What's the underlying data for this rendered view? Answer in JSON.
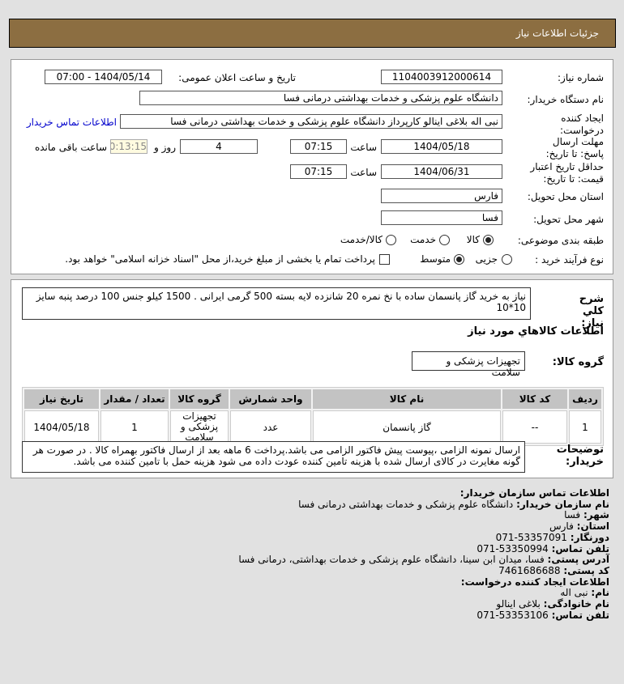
{
  "header": {
    "title": "جزئیات اطلاعات نیاز"
  },
  "form": {
    "need_number_label": "شماره نیاز:",
    "need_number": "1104003912000614",
    "announce_label": "تاریخ و ساعت اعلان عمومی:",
    "announce_value": "1404/05/14 - 07:00",
    "buyer_label": "نام دستگاه خریدار:",
    "buyer_value": "دانشگاه علوم پزشکی و خدمات بهداشتی درمانی فسا",
    "creator_label": "ایجاد کننده درخواست:",
    "creator_value": "نبی اله بلاغی اینالو کارپرداز دانشگاه علوم پزشکی و خدمات بهداشتی درمانی فسا",
    "contact_link": "اطلاعات تماس خریدار",
    "deadline_label": "مهلت ارسال پاسخ: تا تاریخ:",
    "deadline_date": "1404/05/18",
    "time_label": "ساعت",
    "deadline_time": "07:15",
    "days": "4",
    "days_label": "روز و",
    "remaining": "00:13:15",
    "remaining_label": "ساعت باقی مانده",
    "validity_label": "حداقل تاریخ اعتبار قیمت: تا تاریخ:",
    "validity_date": "1404/06/31",
    "validity_time": "07:15",
    "province_label": "استان محل تحویل:",
    "province": "فارس",
    "city_label": "شهر محل تحویل:",
    "city": "فسا",
    "category_label": "طبقه بندی موضوعی:",
    "category_options": [
      "کالا",
      "خدمت",
      "کالا/خدمت"
    ],
    "category_selected": "کالا",
    "process_label": "نوع فرآیند خرید :",
    "process_options": [
      "جزیی",
      "متوسط"
    ],
    "process_selected": "متوسط",
    "payment_note": "پرداخت تمام یا بخشی از مبلغ خرید،از محل \"اسناد خزانه اسلامی\" خواهد بود."
  },
  "details": {
    "desc_label": "شرح کلي نياز:",
    "desc": "نیاز به خرید گاز پانسمان ساده با نخ نمره 20 شانزده لایه بسته 500 گرمی ایرانی . 1500 کیلو جنس 100 درصد پنبه سایز 10*10",
    "items_title": "اطلاعات کالاهاي مورد نياز",
    "group_label": "گروه کالا:",
    "group": "تجهیزات پزشکی و سلامت",
    "table": {
      "headers": [
        "ردیف",
        "کد کالا",
        "نام کالا",
        "واحد شمارش",
        "گروه کالا",
        "تعداد / مقدار",
        "تاریخ نیاز"
      ],
      "rows": [
        [
          "1",
          "--",
          "گاز پانسمان",
          "عدد",
          "تجهیزات پزشکی و سلامت",
          "1",
          "1404/05/18"
        ]
      ]
    },
    "notes_label": "توضیحات خریدار:",
    "notes": "ارسال نمونه الزامی ،پیوست پیش فاکتور الزامی می باشد.پرداخت 6 ماهه بعد از ارسال فاکتور بهمراه کالا . در صورت هر گونه مغایرت در کالای ارسال شده با هزینه تامین کننده عودت داده می شود هزینه حمل با تامین کننده می باشد."
  },
  "contact": {
    "title": "اطلاعات تماس سازمان خریدار:",
    "org_label": "نام سازمان خریدار:",
    "org": "دانشگاه علوم پزشکی و خدمات بهداشتی درمانی فسا",
    "city_label": "شهر:",
    "city": "فسا",
    "province_label": "استان:",
    "province": "فارس",
    "fax_label": "دورنگار:",
    "fax": "53357091-071",
    "phone_label": "تلفن تماس:",
    "phone": "53350994-071",
    "address_label": "آدرس پستی:",
    "address": "فسا، میدان ابن سینا، دانشگاه علوم پزشکی و خدمات بهداشتی، درمانی فسا",
    "postal_label": "کد پستی:",
    "postal": "7461686688",
    "creator_title": "اطلاعات ایجاد کننده درخواست:",
    "name_label": "نام:",
    "name": "نبی اله",
    "family_label": "نام خانوادگی:",
    "family": "بلاغی اینالو",
    "cphone_label": "تلفن تماس:",
    "cphone": "53353106-071"
  }
}
